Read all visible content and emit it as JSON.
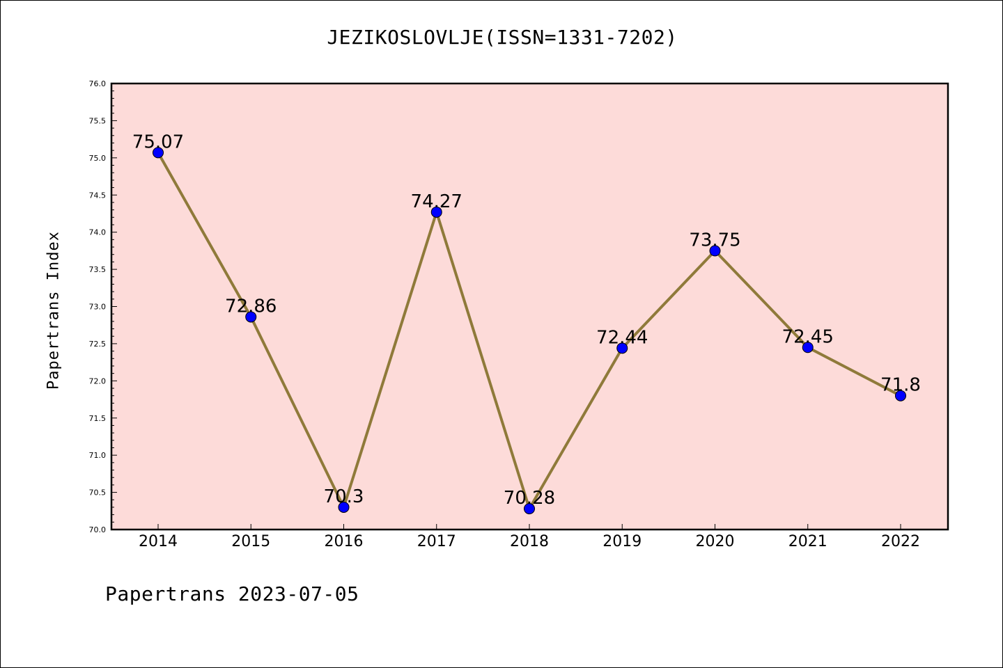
{
  "chart_data": {
    "type": "line",
    "title": "JEZIKOSLOVLJE(ISSN=1331-7202)",
    "xlabel": "",
    "ylabel": "Papertrans Index",
    "categories": [
      "2014",
      "2015",
      "2016",
      "2017",
      "2018",
      "2019",
      "2020",
      "2021",
      "2022"
    ],
    "values": [
      75.07,
      72.86,
      70.3,
      74.27,
      70.28,
      72.44,
      73.75,
      72.45,
      71.8
    ],
    "data_labels": [
      "75.07",
      "72.86",
      "70.3",
      "74.27",
      "70.28",
      "72.44",
      "73.75",
      "72.45",
      "71.8"
    ],
    "ylim": [
      70.0,
      76.0
    ],
    "yticks": [
      "70.0",
      "70.5",
      "71.0",
      "71.5",
      "72.0",
      "72.5",
      "73.0",
      "73.5",
      "74.0",
      "74.5",
      "75.0",
      "75.5",
      "76.0"
    ],
    "grid": false,
    "colors": {
      "plot_background": "#fddbd9",
      "line": "#8f7a3a",
      "marker": "#0000ff"
    }
  },
  "footer": "Papertrans 2023-07-05"
}
